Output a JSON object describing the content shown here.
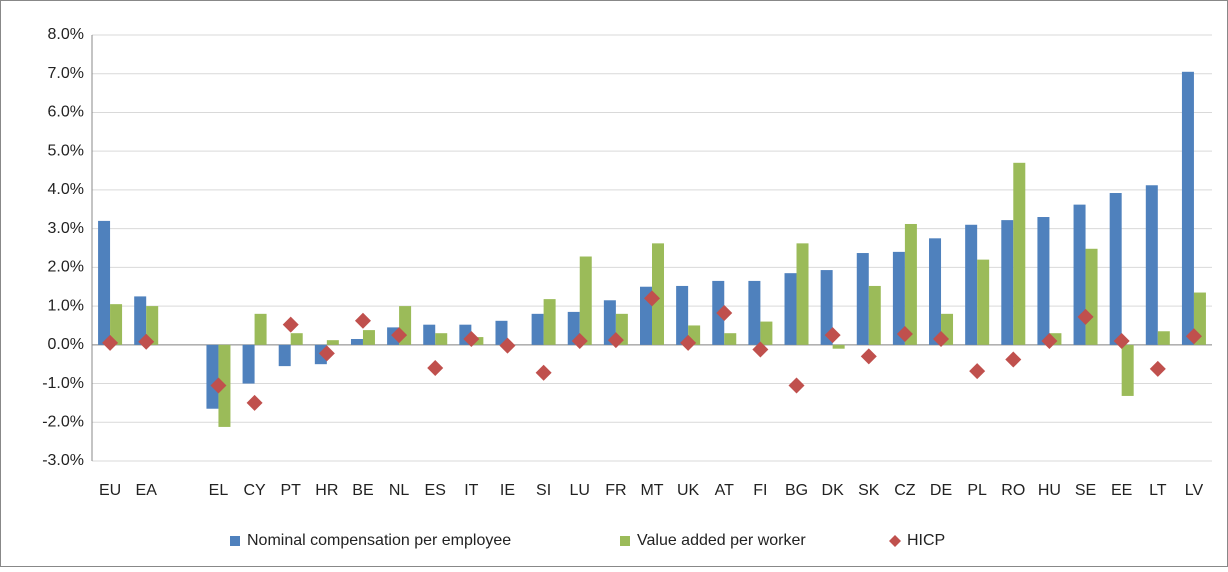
{
  "chart_data": {
    "type": "bar",
    "categories": [
      "EU",
      "EA",
      null,
      "EL",
      "CY",
      "PT",
      "HR",
      "BE",
      "NL",
      "ES",
      "IT",
      "IE",
      "SI",
      "LU",
      "FR",
      "MT",
      "UK",
      "AT",
      "FI",
      "BG",
      "DK",
      "SK",
      "CZ",
      "DE",
      "PL",
      "RO",
      "HU",
      "SE",
      "EE",
      "LT",
      "LV"
    ],
    "series": [
      {
        "name": "Nominal compensation per employee",
        "color": "#4f81bd",
        "kind": "bar",
        "values": [
          3.2,
          1.25,
          null,
          -1.65,
          -1.0,
          -0.55,
          -0.5,
          0.15,
          0.45,
          0.52,
          0.52,
          0.62,
          0.8,
          0.85,
          1.15,
          1.5,
          1.52,
          1.65,
          1.65,
          1.85,
          1.93,
          2.37,
          2.4,
          2.75,
          3.1,
          3.22,
          3.3,
          3.62,
          3.92,
          4.12,
          7.05
        ]
      },
      {
        "name": "Value added per worker",
        "color": "#9bbb59",
        "kind": "bar",
        "values": [
          1.05,
          1.0,
          null,
          -2.12,
          0.8,
          0.3,
          0.12,
          0.38,
          1.0,
          0.3,
          0.2,
          0.0,
          1.18,
          2.28,
          0.8,
          2.62,
          0.5,
          0.3,
          0.6,
          2.62,
          -0.1,
          1.52,
          3.12,
          0.8,
          2.2,
          4.7,
          0.3,
          2.48,
          -1.32,
          0.35,
          1.35
        ]
      },
      {
        "name": "HICP",
        "color": "#c0504d",
        "kind": "diamond",
        "values": [
          0.05,
          0.08,
          null,
          -1.05,
          -1.5,
          0.52,
          -0.22,
          0.62,
          0.25,
          -0.6,
          0.15,
          -0.02,
          -0.72,
          0.1,
          0.12,
          1.2,
          0.05,
          0.82,
          -0.12,
          -1.05,
          0.25,
          -0.3,
          0.28,
          0.15,
          -0.68,
          -0.38,
          0.1,
          0.72,
          0.1,
          -0.62,
          0.22
        ]
      }
    ],
    "ylim": [
      -3,
      8
    ],
    "yticks": [
      {
        "value": -3,
        "label": "-3.0%"
      },
      {
        "value": -2,
        "label": "-2.0%"
      },
      {
        "value": -1,
        "label": "-1.0%"
      },
      {
        "value": 0,
        "label": "0.0%"
      },
      {
        "value": 1,
        "label": "1.0%"
      },
      {
        "value": 2,
        "label": "2.0%"
      },
      {
        "value": 3,
        "label": "3.0%"
      },
      {
        "value": 4,
        "label": "4.0%"
      },
      {
        "value": 5,
        "label": "5.0%"
      },
      {
        "value": 6,
        "label": "6.0%"
      },
      {
        "value": 7,
        "label": "7.0%"
      },
      {
        "value": 8,
        "label": "8.0%"
      }
    ],
    "grid": true,
    "legend": "bottom"
  }
}
